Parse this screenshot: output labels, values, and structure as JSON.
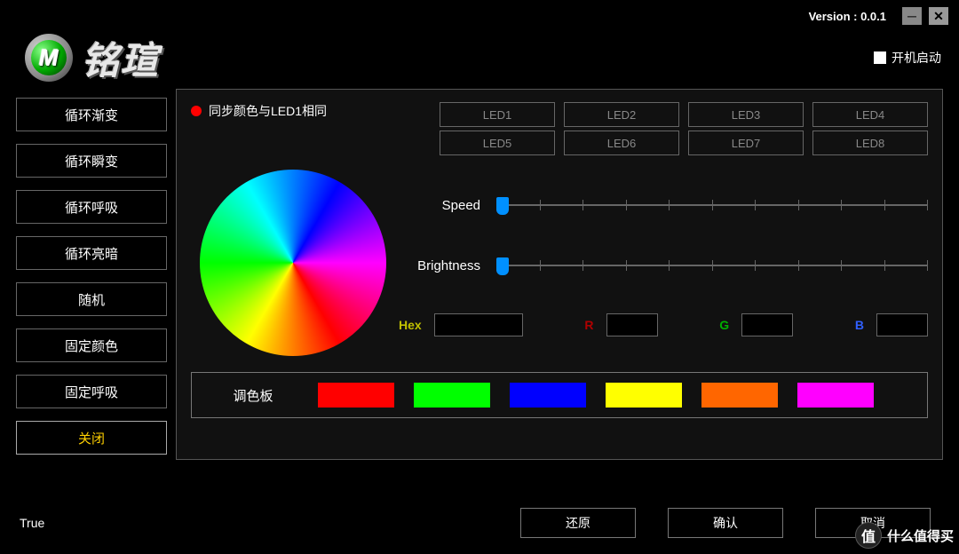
{
  "version_label": "Version : 0.0.1",
  "brand_text": "铭瑄",
  "startup_label": "开机启动",
  "sidebar": {
    "items": [
      "循环渐变",
      "循环瞬变",
      "循环呼吸",
      "循环亮暗",
      "随机",
      "固定颜色",
      "固定呼吸",
      "关闭"
    ],
    "active_index": 7,
    "active_color": "#ffd000"
  },
  "sync_label": "同步颜色与LED1相同",
  "sync_dot_color": "#ff0000",
  "leds": [
    "LED1",
    "LED2",
    "LED3",
    "LED4",
    "LED5",
    "LED6",
    "LED7",
    "LED8"
  ],
  "sliders": {
    "speed": {
      "label": "Speed",
      "value": 0,
      "ticks": 11,
      "thumb_color": "#0090ff"
    },
    "brightness": {
      "label": "Brightness",
      "value": 0,
      "ticks": 11,
      "thumb_color": "#0090ff"
    }
  },
  "hex": {
    "hex_label": "Hex",
    "hex_color": "#c0c000",
    "r_label": "R",
    "r_color": "#b00000",
    "g_label": "G",
    "g_color": "#00b000",
    "b_label": "B",
    "b_color": "#3060ff"
  },
  "palette": {
    "label": "调色板",
    "colors": [
      "#ff0000",
      "#00ff00",
      "#0000ff",
      "#ffff00",
      "#ff6600",
      "#ff00ff"
    ]
  },
  "status_text": "True",
  "footer": {
    "reset": "还原",
    "ok": "确认",
    "cancel": "取消"
  },
  "watermark": {
    "icon": "值",
    "text": "什么值得买"
  },
  "colors": {
    "bg": "#000000",
    "panel_bg": "#111111",
    "border": "#555555",
    "text": "#ffffff",
    "muted": "#888888"
  }
}
